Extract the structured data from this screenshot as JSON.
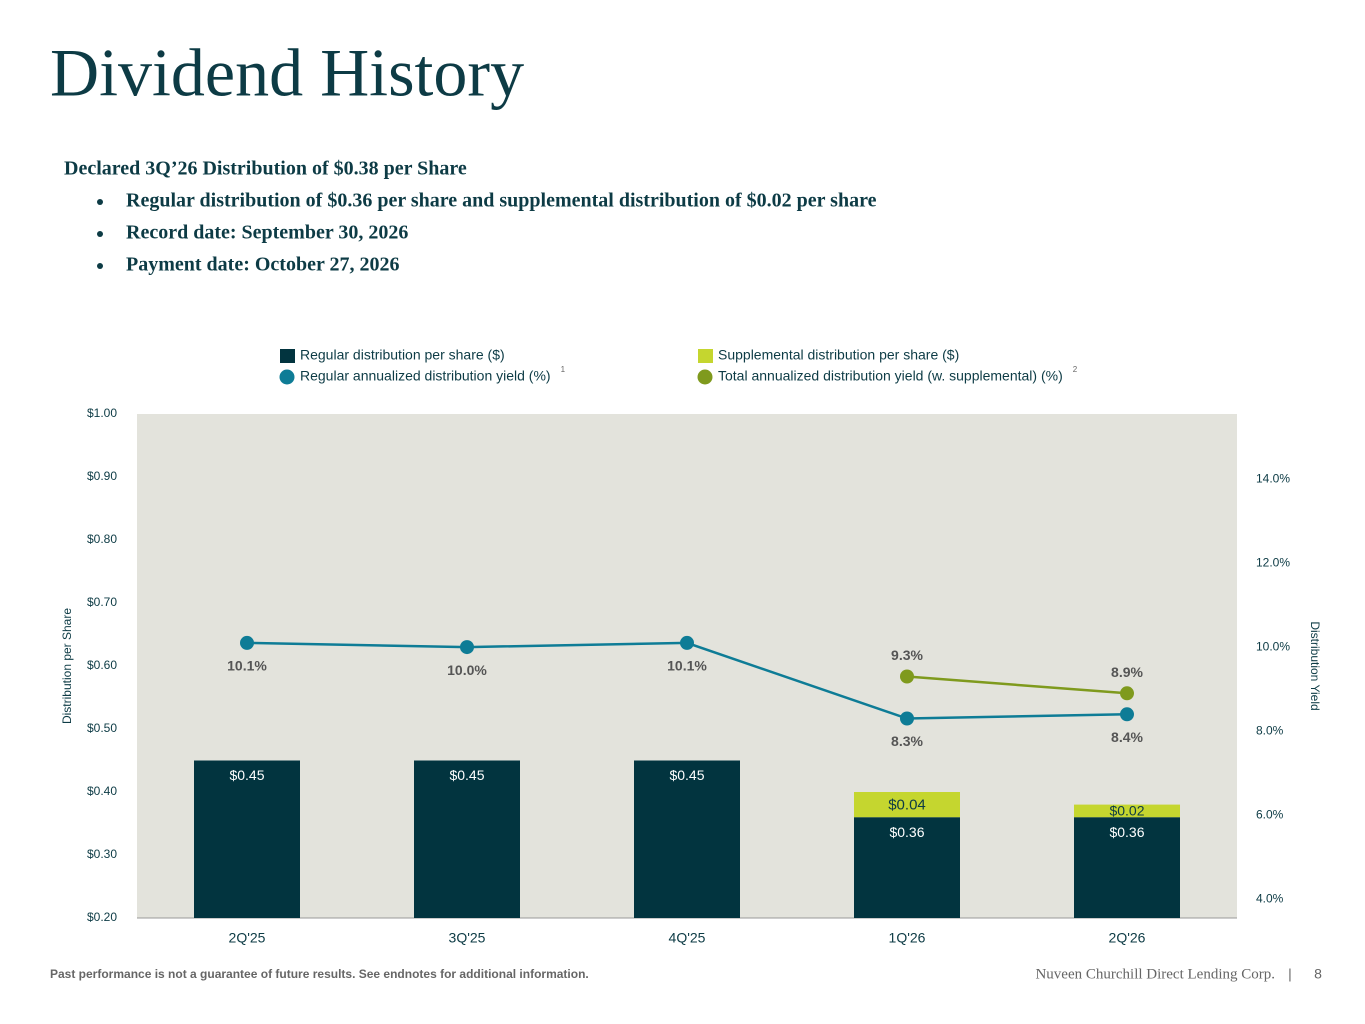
{
  "title": "Dividend History",
  "summary": {
    "heading": "Declared 3Q’26 Distribution of $0.38 per Share",
    "bullets": [
      "Regular distribution of $0.36 per share and supplemental distribution of $0.02 per share",
      "Record date: September 30, 2026",
      "Payment date: October 27, 2026"
    ]
  },
  "chart_data": {
    "type": "bar",
    "stacked": true,
    "plot_background": "#e3e3dc",
    "categories": [
      "2Q'25",
      "3Q'25",
      "4Q'25",
      "1Q'26",
      "2Q'26"
    ],
    "ylabel": "Distribution per Share",
    "y2label": "Distribution Yield",
    "ylim": [
      0.2,
      1.0
    ],
    "yticks": [
      {
        "value": 0.2,
        "label": "$0.20"
      },
      {
        "value": 0.3,
        "label": "$0.30"
      },
      {
        "value": 0.4,
        "label": "$0.40"
      },
      {
        "value": 0.5,
        "label": "$0.50"
      },
      {
        "value": 0.6,
        "label": "$0.60"
      },
      {
        "value": 0.7,
        "label": "$0.70"
      },
      {
        "value": 0.8,
        "label": "$0.80"
      },
      {
        "value": 0.9,
        "label": "$0.90"
      },
      {
        "value": 1.0,
        "label": "$1.00"
      }
    ],
    "y2lim": [
      3.55,
      15.55
    ],
    "y2ticks": [
      {
        "value": 4,
        "label": "4.0%"
      },
      {
        "value": 6,
        "label": "6.0%"
      },
      {
        "value": 8,
        "label": "8.0%"
      },
      {
        "value": 10,
        "label": "10.0%"
      },
      {
        "value": 12,
        "label": "12.0%"
      },
      {
        "value": 14,
        "label": "14.0%"
      }
    ],
    "series": [
      {
        "name": "Regular distribution per share ($)",
        "type": "bar",
        "color": "#02343f",
        "values": [
          0.45,
          0.45,
          0.45,
          0.36,
          0.36
        ],
        "value_labels": [
          "$0.45",
          "$0.45",
          "$0.45",
          "$0.36",
          "$0.36"
        ]
      },
      {
        "name": "Supplemental distribution per share ($)",
        "type": "bar",
        "color": "#c5d62f",
        "values": [
          null,
          null,
          null,
          0.04,
          0.02
        ],
        "value_labels": [
          null,
          null,
          null,
          "$0.04",
          "$0.02"
        ]
      },
      {
        "name": "Regular annualized distribution yield (%)",
        "note": "1",
        "type": "line",
        "axis": "y2",
        "color": "#0e7c96",
        "values": [
          10.1,
          10.0,
          10.1,
          8.3,
          8.4
        ],
        "value_labels": [
          "10.1%",
          "10.0%",
          "10.1%",
          "8.3%",
          "8.4%"
        ]
      },
      {
        "name": "Total annualized distribution yield (w. supplemental) (%)",
        "note": "2",
        "type": "line",
        "axis": "y2",
        "color": "#7f9a1d",
        "values": [
          null,
          null,
          null,
          9.3,
          8.9
        ],
        "value_labels": [
          null,
          null,
          null,
          "9.3%",
          "8.9%"
        ]
      }
    ]
  },
  "footer": {
    "disclaimer": "Past performance is not a guarantee of future results. See endnotes for additional information.",
    "company": "Nuveen Churchill Direct Lending Corp.",
    "separator": "|",
    "page": "8"
  }
}
